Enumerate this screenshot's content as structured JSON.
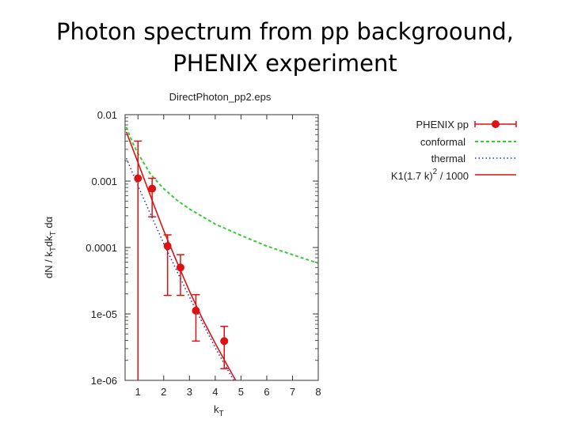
{
  "slide": {
    "title_line1": "Photon spectrum from pp backgroound,",
    "title_line2": "PHENIX experiment"
  },
  "colors": {
    "phenix": "#dd1111",
    "conformal": "#33cc33",
    "thermal": "#2233aa",
    "k1": "#dd1111",
    "frame": "#333333"
  },
  "chart_data": {
    "type": "scatter",
    "title": "DirectPhoton_pp2.eps",
    "xlabel": "k_T",
    "ylabel": "dN / k_T dk_T dα",
    "yscale": "log",
    "xlim": [
      0.5,
      8
    ],
    "ylim": [
      1e-06,
      0.01
    ],
    "x_ticks": [
      1,
      2,
      3,
      4,
      5,
      6,
      7,
      8
    ],
    "y_ticks": [
      {
        "value": 0.01,
        "label": "0.01"
      },
      {
        "value": 0.001,
        "label": "0.001"
      },
      {
        "value": 0.0001,
        "label": "0.0001"
      },
      {
        "value": 1e-05,
        "label": "1e-05"
      },
      {
        "value": 1e-06,
        "label": "1e-06"
      }
    ],
    "legend_position": "outside-right",
    "series": [
      {
        "name": "PHENIX pp",
        "kind": "points-errorbars",
        "points": [
          {
            "x": 1.0,
            "y": 0.0011,
            "ylo": 3e-07,
            "yhi": 0.004
          },
          {
            "x": 1.55,
            "y": 0.00077,
            "ylo": 0.00029,
            "yhi": 0.0011
          },
          {
            "x": 2.15,
            "y": 0.000105,
            "ylo": 1.9e-05,
            "yhi": 0.000155
          },
          {
            "x": 2.65,
            "y": 5e-05,
            "ylo": 1.9e-05,
            "yhi": 7.8e-05
          },
          {
            "x": 3.25,
            "y": 1.12e-05,
            "ylo": 3.9e-06,
            "yhi": 1.95e-05
          },
          {
            "x": 4.35,
            "y": 3.9e-06,
            "ylo": 1.5e-06,
            "yhi": 6.5e-06
          }
        ]
      },
      {
        "name": "conformal",
        "kind": "line-dashed",
        "x": [
          0.55,
          0.8,
          1.0,
          1.5,
          2.0,
          2.5,
          3.0,
          4.0,
          5.0,
          6.0,
          7.0,
          8.0
        ],
        "y": [
          0.0065,
          0.0037,
          0.0026,
          0.00125,
          0.00077,
          0.00052,
          0.00038,
          0.000225,
          0.000152,
          0.000105,
          7.8e-05,
          5.8e-05
        ]
      },
      {
        "name": "thermal",
        "kind": "line-dotted",
        "x": [
          0.55,
          1.0,
          1.5,
          2.0,
          2.5,
          3.0,
          3.5,
          4.0,
          4.5,
          5.0,
          5.3
        ],
        "y": [
          0.0022,
          0.00085,
          0.00031,
          0.000115,
          4.5e-05,
          1.8e-05,
          7.4e-06,
          3.1e-06,
          1.4e-06,
          6.5e-07,
          1e-06
        ]
      },
      {
        "name": "K1(1.7 k)^2 / 1000",
        "kind": "line-solid",
        "x": [
          0.55,
          1.0,
          1.5,
          2.0,
          2.5,
          3.0,
          3.5,
          4.0,
          4.5,
          5.0,
          5.45
        ],
        "y": [
          0.0055,
          0.0019,
          0.00058,
          0.00018,
          6.2e-05,
          2.2e-05,
          8.5e-06,
          3.6e-06,
          1.6e-06,
          7.2e-07,
          1e-06
        ]
      }
    ],
    "legend": {
      "phenix": "PHENIX pp",
      "conformal": "conformal",
      "thermal": "thermal",
      "k1_main": "K1(1.7 k)",
      "k1_exp": "2",
      "k1_tail": " / 1000"
    }
  }
}
